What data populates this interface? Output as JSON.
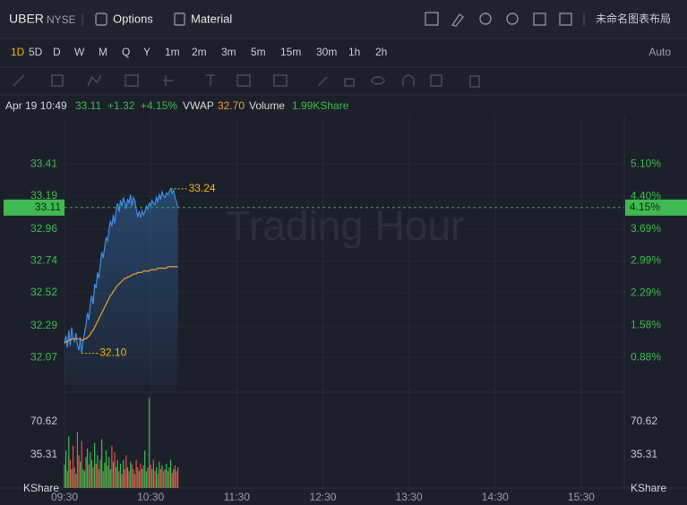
{
  "header": {
    "symbol": "UBER",
    "exchange": "NYSE",
    "buttons": [
      "Options",
      "Material"
    ],
    "layout_name": "未命名图表布局"
  },
  "periods": {
    "items": [
      "1D",
      "5D",
      "D",
      "W",
      "M",
      "Q",
      "Y",
      "1m",
      "2m",
      "3m",
      "5m",
      "15m",
      "30m",
      "1h",
      "2h"
    ],
    "active": "1D",
    "scale_mode": "Auto"
  },
  "info": {
    "time": "Apr 19 10:49",
    "price": "33.11",
    "change": "+1.32",
    "change_pct": "+4.15%",
    "vwap": "32.70",
    "volume_label": "Volume",
    "volume": "1.99KShare"
  },
  "chart_data": {
    "type": "line",
    "watermark": "Trading Hour",
    "x": [
      570,
      571,
      572,
      573,
      574,
      575,
      576,
      577,
      578,
      579,
      580,
      581,
      582,
      583,
      584,
      585,
      586,
      587,
      588,
      589,
      590,
      591,
      592,
      593,
      594,
      595,
      596,
      597,
      598,
      599,
      600,
      601,
      602,
      603,
      604,
      605,
      606,
      607,
      608,
      609,
      610,
      611,
      612,
      613,
      614,
      615,
      616,
      617,
      618,
      619,
      620,
      621,
      622,
      623,
      624,
      625,
      626,
      627,
      628,
      629,
      630,
      631,
      632,
      633,
      634,
      635,
      636,
      637,
      638,
      639,
      640,
      641,
      642,
      643,
      644,
      645,
      646,
      647,
      648,
      649
    ],
    "series": [
      {
        "color": "#3d8ee8",
        "values": [
          32.17,
          32.22,
          32.14,
          32.26,
          32.15,
          32.28,
          32.2,
          32.18,
          32.24,
          32.16,
          32.12,
          32.21,
          32.1,
          32.19,
          32.24,
          32.3,
          32.38,
          32.33,
          32.45,
          32.5,
          32.44,
          32.58,
          32.55,
          32.66,
          32.62,
          32.72,
          32.8,
          32.76,
          32.84,
          32.9,
          32.88,
          32.96,
          33.02,
          32.98,
          33.06,
          33.0,
          33.1,
          33.14,
          33.08,
          33.16,
          33.12,
          33.18,
          33.15,
          33.1,
          33.17,
          33.14,
          33.2,
          33.12,
          33.18,
          33.16,
          33.1,
          33.05,
          33.08,
          33.04,
          33.09,
          33.06,
          33.08,
          33.12,
          33.1,
          33.14,
          33.12,
          33.16,
          33.14,
          33.13,
          33.18,
          33.15,
          33.2,
          33.17,
          33.22,
          33.19,
          33.18,
          33.21,
          33.2,
          33.22,
          33.24,
          33.21,
          33.23,
          33.18,
          33.15,
          33.11
        ]
      },
      {
        "name": "VWAP",
        "color": "#f0a030",
        "values": [
          32.17,
          32.18,
          32.18,
          32.19,
          32.19,
          32.2,
          32.2,
          32.2,
          32.2,
          32.2,
          32.2,
          32.2,
          32.19,
          32.19,
          32.2,
          32.2,
          32.21,
          32.22,
          32.23,
          32.25,
          32.26,
          32.28,
          32.3,
          32.32,
          32.34,
          32.36,
          32.38,
          32.4,
          32.42,
          32.44,
          32.46,
          32.48,
          32.5,
          32.51,
          32.53,
          32.54,
          32.56,
          32.57,
          32.58,
          32.59,
          32.6,
          32.61,
          32.62,
          32.62,
          32.63,
          32.63,
          32.64,
          32.64,
          32.65,
          32.65,
          32.65,
          32.66,
          32.66,
          32.66,
          32.66,
          32.67,
          32.67,
          32.67,
          32.67,
          32.67,
          32.68,
          32.68,
          32.68,
          32.68,
          32.68,
          32.69,
          32.69,
          32.69,
          32.69,
          32.69,
          32.69,
          32.69,
          32.7,
          32.7,
          32.7,
          32.7,
          32.7,
          32.7,
          32.7,
          32.7
        ]
      }
    ],
    "xlim": [
      570,
      960
    ],
    "xticks": [
      {
        "value": 570,
        "label": "09:30"
      },
      {
        "value": 630,
        "label": "10:30"
      },
      {
        "value": 690,
        "label": "11:30"
      },
      {
        "value": 750,
        "label": "12:30"
      },
      {
        "value": 810,
        "label": "13:30"
      },
      {
        "value": 870,
        "label": "14:30"
      },
      {
        "value": 930,
        "label": "15:30"
      }
    ],
    "ylim": [
      31.88,
      33.68
    ],
    "yticks": [
      32.07,
      32.29,
      32.52,
      32.74,
      32.96,
      33.19,
      33.41
    ],
    "y2lim": [
      0.28,
      5.95
    ],
    "y2ticks": [
      {
        "value": 0.88,
        "label": "0.88%"
      },
      {
        "value": 1.58,
        "label": "1.58%"
      },
      {
        "value": 2.29,
        "label": "2.29%"
      },
      {
        "value": 2.99,
        "label": "2.99%"
      },
      {
        "value": 3.69,
        "label": "3.69%"
      },
      {
        "value": 4.4,
        "label": "4.40%"
      },
      {
        "value": 5.1,
        "label": "5.10%"
      }
    ],
    "last_price": 33.11,
    "last_change_pct": {
      "value": 4.15,
      "label": "4.15%"
    },
    "high": 33.24,
    "low": {
      "value": 32.1,
      "label": "32.10"
    },
    "volume": {
      "values": [
        25,
        40,
        18,
        55,
        30,
        20,
        45,
        22,
        15,
        60,
        35,
        28,
        50,
        20,
        18,
        33,
        42,
        25,
        38,
        30,
        22,
        48,
        26,
        35,
        20,
        30,
        52,
        18,
        27,
        40,
        24,
        33,
        20,
        45,
        28,
        38,
        22,
        30,
        18,
        26,
        15,
        30,
        20,
        35,
        22,
        18,
        28,
        25,
        20,
        15,
        30,
        22,
        18,
        26,
        20,
        24,
        40,
        18,
        22,
        96,
        25,
        20,
        30,
        18,
        22,
        15,
        28,
        20,
        24,
        18,
        20,
        26,
        18,
        22,
        30,
        16,
        20,
        24,
        18,
        22
      ],
      "up_color": "#3fb950",
      "down_color": "#e5534b",
      "unit": "KShare",
      "ylim": [
        0,
        100.2
      ],
      "yticks": [
        35.31,
        70.62
      ]
    }
  }
}
